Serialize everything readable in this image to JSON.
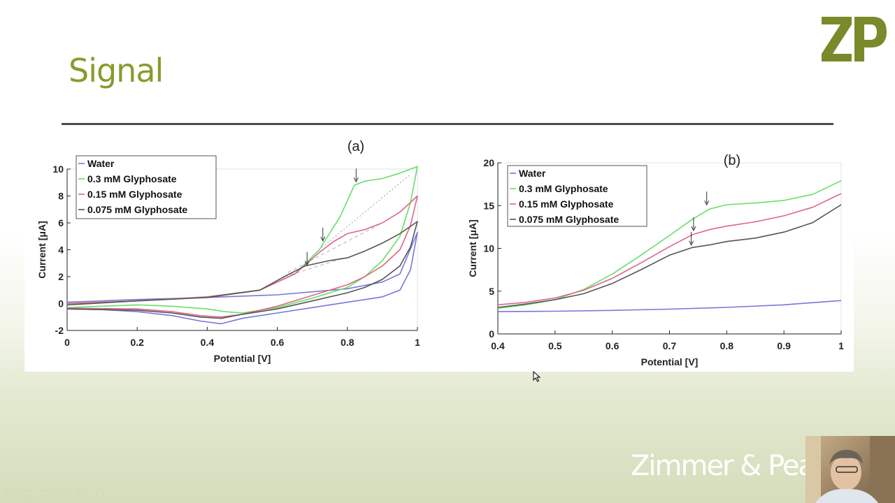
{
  "slide": {
    "title": "Signal",
    "brand_text": "Zimmer & Peacock",
    "colors": {
      "title": "#8a9a2e",
      "logo": "#7a8a2a",
      "rule": "#4a4a4a"
    },
    "logo_text": "ZP"
  },
  "chart_data": [
    {
      "type": "line",
      "title": "(a)",
      "xlabel": "Potential [V]",
      "ylabel": "Current [μA]",
      "xlim": [
        0,
        1
      ],
      "ylim": [
        -2,
        10
      ],
      "xticks": [
        0,
        0.2,
        0.4,
        0.6,
        0.8,
        1
      ],
      "xtick_labels": [
        "0",
        "0.2",
        "0.4",
        "0.6",
        "0.8",
        "1"
      ],
      "yticks": [
        -2,
        0,
        2,
        4,
        6,
        8,
        10
      ],
      "ytick_labels": [
        "-2",
        "0",
        "2",
        "4",
        "6",
        "8",
        "10"
      ],
      "legend_position": "top-left",
      "series": [
        {
          "name": "Water",
          "color": "#7777dd",
          "forward": [
            [
              0,
              0.1
            ],
            [
              0.2,
              0.3
            ],
            [
              0.4,
              0.45
            ],
            [
              0.6,
              0.65
            ],
            [
              0.8,
              1.1
            ],
            [
              0.9,
              1.6
            ],
            [
              0.95,
              2.2
            ],
            [
              1.0,
              5.3
            ]
          ],
          "reverse": [
            [
              1.0,
              5.3
            ],
            [
              0.98,
              2.5
            ],
            [
              0.95,
              1.0
            ],
            [
              0.9,
              0.5
            ],
            [
              0.8,
              0.1
            ],
            [
              0.7,
              -0.3
            ],
            [
              0.6,
              -0.7
            ],
            [
              0.5,
              -1.1
            ],
            [
              0.44,
              -1.5
            ],
            [
              0.38,
              -1.3
            ],
            [
              0.3,
              -0.9
            ],
            [
              0.2,
              -0.6
            ],
            [
              0.1,
              -0.45
            ],
            [
              0,
              -0.4
            ]
          ]
        },
        {
          "name": "0.3 mM Glyphosate",
          "color": "#66e066",
          "forward": [
            [
              0,
              0.0
            ],
            [
              0.2,
              0.2
            ],
            [
              0.4,
              0.5
            ],
            [
              0.55,
              1.0
            ],
            [
              0.65,
              2.2
            ],
            [
              0.72,
              4.0
            ],
            [
              0.78,
              6.5
            ],
            [
              0.82,
              8.8
            ],
            [
              0.85,
              9.1
            ],
            [
              0.9,
              9.3
            ],
            [
              0.95,
              9.7
            ],
            [
              1.0,
              10.2
            ]
          ],
          "reverse": [
            [
              1.0,
              10.2
            ],
            [
              0.98,
              7.5
            ],
            [
              0.95,
              5.0
            ],
            [
              0.9,
              3.2
            ],
            [
              0.85,
              2.0
            ],
            [
              0.8,
              1.2
            ],
            [
              0.7,
              0.4
            ],
            [
              0.6,
              -0.3
            ],
            [
              0.5,
              -0.7
            ],
            [
              0.45,
              -0.6
            ],
            [
              0.4,
              -0.4
            ],
            [
              0.3,
              -0.2
            ],
            [
              0.2,
              -0.1
            ],
            [
              0,
              -0.3
            ]
          ]
        },
        {
          "name": "0.15 mM Glyphosate",
          "color": "#dd6688",
          "forward": [
            [
              0,
              0.0
            ],
            [
              0.2,
              0.2
            ],
            [
              0.4,
              0.5
            ],
            [
              0.55,
              1.0
            ],
            [
              0.65,
              2.2
            ],
            [
              0.72,
              3.8
            ],
            [
              0.76,
              4.6
            ],
            [
              0.8,
              5.2
            ],
            [
              0.85,
              5.5
            ],
            [
              0.9,
              6.0
            ],
            [
              0.95,
              6.8
            ],
            [
              1.0,
              8.0
            ]
          ],
          "reverse": [
            [
              1.0,
              8.0
            ],
            [
              0.98,
              5.8
            ],
            [
              0.95,
              4.0
            ],
            [
              0.9,
              2.8
            ],
            [
              0.85,
              2.0
            ],
            [
              0.8,
              1.4
            ],
            [
              0.7,
              0.6
            ],
            [
              0.6,
              -0.2
            ],
            [
              0.5,
              -0.8
            ],
            [
              0.44,
              -1.0
            ],
            [
              0.38,
              -0.9
            ],
            [
              0.3,
              -0.6
            ],
            [
              0.2,
              -0.4
            ],
            [
              0,
              -0.35
            ]
          ]
        },
        {
          "name": "0.075 mM Glyphosate",
          "color": "#555555",
          "forward": [
            [
              0,
              -0.1
            ],
            [
              0.2,
              0.2
            ],
            [
              0.4,
              0.45
            ],
            [
              0.55,
              1.0
            ],
            [
              0.62,
              2.0
            ],
            [
              0.68,
              2.8
            ],
            [
              0.75,
              3.2
            ],
            [
              0.8,
              3.4
            ],
            [
              0.85,
              3.9
            ],
            [
              0.9,
              4.5
            ],
            [
              0.95,
              5.2
            ],
            [
              1.0,
              6.1
            ]
          ],
          "reverse": [
            [
              1.0,
              6.1
            ],
            [
              0.98,
              4.2
            ],
            [
              0.95,
              2.8
            ],
            [
              0.9,
              1.8
            ],
            [
              0.85,
              1.2
            ],
            [
              0.8,
              0.8
            ],
            [
              0.7,
              0.2
            ],
            [
              0.6,
              -0.4
            ],
            [
              0.5,
              -0.8
            ],
            [
              0.44,
              -1.1
            ],
            [
              0.38,
              -1.0
            ],
            [
              0.3,
              -0.7
            ],
            [
              0.2,
              -0.5
            ],
            [
              0,
              -0.4
            ]
          ]
        }
      ],
      "baselines": [
        {
          "color": "#aaaaaa",
          "style": "dotted",
          "from": [
            0.72,
            4.0
          ],
          "to": [
            0.98,
            9.6
          ]
        },
        {
          "color": "#bbbbbb",
          "style": "dashed",
          "from": [
            0.63,
            2.3
          ],
          "to": [
            0.9,
            6.0
          ]
        },
        {
          "color": "#bbbbbb",
          "style": "dashed",
          "from": [
            0.62,
            2.0
          ],
          "to": [
            0.78,
            3.3
          ]
        }
      ],
      "peak_markers": [
        [
          0.825,
          9.0
        ],
        [
          0.73,
          4.6
        ],
        [
          0.685,
          2.8
        ]
      ]
    },
    {
      "type": "line",
      "title": "(b)",
      "xlabel": "Potential [V]",
      "ylabel": "Current [μA]",
      "xlim": [
        0.4,
        1
      ],
      "ylim": [
        0,
        20
      ],
      "xticks": [
        0.4,
        0.5,
        0.6,
        0.7,
        0.8,
        0.9,
        1
      ],
      "xtick_labels": [
        "0.4",
        "0.5",
        "0.6",
        "0.7",
        "0.8",
        "0.9",
        "1"
      ],
      "yticks": [
        0,
        5,
        10,
        15,
        20
      ],
      "ytick_labels": [
        "0",
        "5",
        "10",
        "15",
        "20"
      ],
      "legend_position": "top-left",
      "series": [
        {
          "name": "Water",
          "color": "#7777dd",
          "points": [
            [
              0.4,
              2.6
            ],
            [
              0.5,
              2.65
            ],
            [
              0.6,
              2.75
            ],
            [
              0.7,
              2.9
            ],
            [
              0.8,
              3.1
            ],
            [
              0.9,
              3.4
            ],
            [
              1.0,
              3.9
            ]
          ]
        },
        {
          "name": "0.3 mM Glyphosate",
          "color": "#66e066",
          "points": [
            [
              0.4,
              3.0
            ],
            [
              0.45,
              3.4
            ],
            [
              0.5,
              4.0
            ],
            [
              0.55,
              5.2
            ],
            [
              0.6,
              7.0
            ],
            [
              0.65,
              9.2
            ],
            [
              0.7,
              11.5
            ],
            [
              0.74,
              13.4
            ],
            [
              0.77,
              14.6
            ],
            [
              0.8,
              15.1
            ],
            [
              0.85,
              15.3
            ],
            [
              0.9,
              15.6
            ],
            [
              0.95,
              16.3
            ],
            [
              1.0,
              17.9
            ]
          ]
        },
        {
          "name": "0.15 mM Glyphosate",
          "color": "#dd6688",
          "points": [
            [
              0.4,
              3.4
            ],
            [
              0.45,
              3.7
            ],
            [
              0.5,
              4.2
            ],
            [
              0.55,
              5.1
            ],
            [
              0.6,
              6.5
            ],
            [
              0.65,
              8.3
            ],
            [
              0.7,
              10.2
            ],
            [
              0.74,
              11.6
            ],
            [
              0.77,
              12.2
            ],
            [
              0.8,
              12.6
            ],
            [
              0.85,
              13.1
            ],
            [
              0.9,
              13.8
            ],
            [
              0.95,
              14.8
            ],
            [
              1.0,
              16.4
            ]
          ]
        },
        {
          "name": "0.075 mM Glyphosate",
          "color": "#555555",
          "points": [
            [
              0.4,
              3.1
            ],
            [
              0.45,
              3.5
            ],
            [
              0.5,
              4.0
            ],
            [
              0.55,
              4.7
            ],
            [
              0.6,
              5.9
            ],
            [
              0.65,
              7.5
            ],
            [
              0.7,
              9.2
            ],
            [
              0.74,
              10.1
            ],
            [
              0.77,
              10.4
            ],
            [
              0.8,
              10.8
            ],
            [
              0.85,
              11.2
            ],
            [
              0.9,
              11.9
            ],
            [
              0.95,
              13.0
            ],
            [
              1.0,
              15.1
            ]
          ]
        }
      ],
      "peak_markers": [
        [
          0.765,
          15.0
        ],
        [
          0.742,
          12.0
        ],
        [
          0.738,
          10.3
        ]
      ]
    }
  ]
}
